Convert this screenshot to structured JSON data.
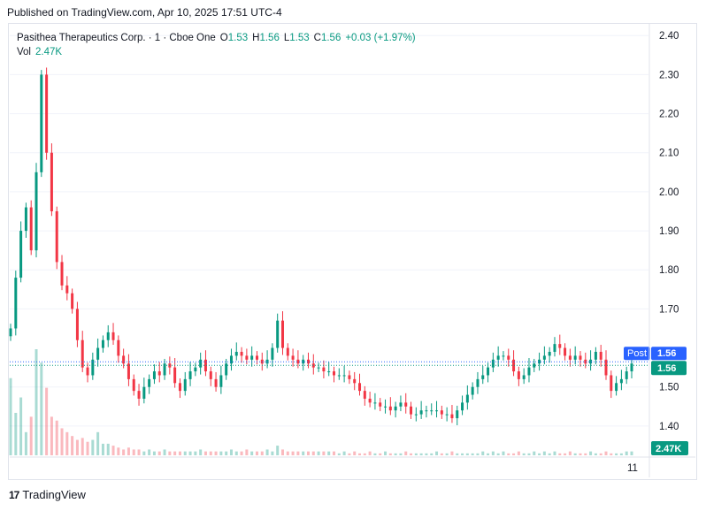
{
  "published_line": "Published on TradingView.com, Apr 10, 2025 17:51 UTC-4",
  "legend": {
    "name": "Pasithea Therapeutics Corp. · 1 · Cboe One",
    "o_label": "O",
    "o": "1.53",
    "h_label": "H",
    "h": "1.56",
    "l_label": "L",
    "l": "1.53",
    "c_label": "C",
    "c": "1.56",
    "change": "+0.03 (+1.97%)",
    "vol_label": "Vol",
    "vol": "2.47K"
  },
  "brand": "TradingView",
  "colors": {
    "up": "#089981",
    "down": "#f23645",
    "post": "#2962ff",
    "price_tag": "#089981"
  },
  "chart_data": {
    "type": "candlestick",
    "timeframe": "1",
    "y_ticks": [
      "2.40",
      "2.30",
      "2.20",
      "2.10",
      "2.00",
      "1.90",
      "1.80",
      "1.70",
      "1.50",
      "1.40"
    ],
    "ylim": [
      1.325,
      2.43
    ],
    "x_ticks": [
      "11"
    ],
    "post_label": "Post",
    "post_price": "1.56",
    "last_price": "1.56",
    "volume_label": "2.47K",
    "close_series": [
      1.65,
      1.78,
      1.9,
      1.96,
      1.85,
      2.05,
      2.3,
      2.1,
      1.95,
      1.82,
      1.76,
      1.74,
      1.7,
      1.62,
      1.55,
      1.53,
      1.57,
      1.6,
      1.62,
      1.64,
      1.62,
      1.58,
      1.56,
      1.52,
      1.49,
      1.47,
      1.5,
      1.52,
      1.54,
      1.53,
      1.56,
      1.55,
      1.51,
      1.49,
      1.52,
      1.54,
      1.55,
      1.57,
      1.54,
      1.52,
      1.5,
      1.53,
      1.56,
      1.58,
      1.59,
      1.58,
      1.57,
      1.58,
      1.57,
      1.56,
      1.57,
      1.6,
      1.67,
      1.6,
      1.58,
      1.57,
      1.56,
      1.57,
      1.56,
      1.55,
      1.55,
      1.54,
      1.54,
      1.53,
      1.53,
      1.53,
      1.52,
      1.51,
      1.49,
      1.47,
      1.46,
      1.46,
      1.45,
      1.45,
      1.44,
      1.45,
      1.46,
      1.45,
      1.43,
      1.43,
      1.44,
      1.44,
      1.44,
      1.44,
      1.43,
      1.43,
      1.42,
      1.44,
      1.46,
      1.48,
      1.5,
      1.52,
      1.53,
      1.55,
      1.57,
      1.58,
      1.58,
      1.57,
      1.54,
      1.52,
      1.53,
      1.55,
      1.56,
      1.57,
      1.58,
      1.59,
      1.61,
      1.6,
      1.58,
      1.57,
      1.58,
      1.57,
      1.56,
      1.57,
      1.59,
      1.57,
      1.53,
      1.49,
      1.51,
      1.52,
      1.54,
      1.56
    ],
    "volume_series": [
      40,
      22,
      30,
      12,
      20,
      55,
      48,
      35,
      20,
      18,
      14,
      12,
      10,
      8,
      9,
      7,
      8,
      12,
      6,
      6,
      5,
      4,
      3,
      4,
      3,
      3,
      2,
      3,
      2,
      2,
      3,
      2,
      2,
      2,
      2,
      2,
      2,
      3,
      2,
      2,
      2,
      2,
      2,
      3,
      2,
      2,
      3,
      2,
      2,
      2,
      3,
      2,
      5,
      3,
      2,
      2,
      2,
      2,
      2,
      2,
      2,
      2,
      2,
      2,
      1,
      2,
      1,
      2,
      1,
      1,
      2,
      1,
      1,
      2,
      1,
      1,
      1,
      2,
      1,
      1,
      1,
      1,
      1,
      2,
      1,
      1,
      2,
      1,
      1,
      1,
      1,
      1,
      2,
      1,
      2,
      1,
      2,
      1,
      1,
      2,
      1,
      1,
      2,
      1,
      2,
      1,
      2,
      1,
      1,
      2,
      1,
      1,
      1,
      2,
      1,
      1,
      2,
      1,
      1,
      1,
      2,
      2
    ]
  }
}
